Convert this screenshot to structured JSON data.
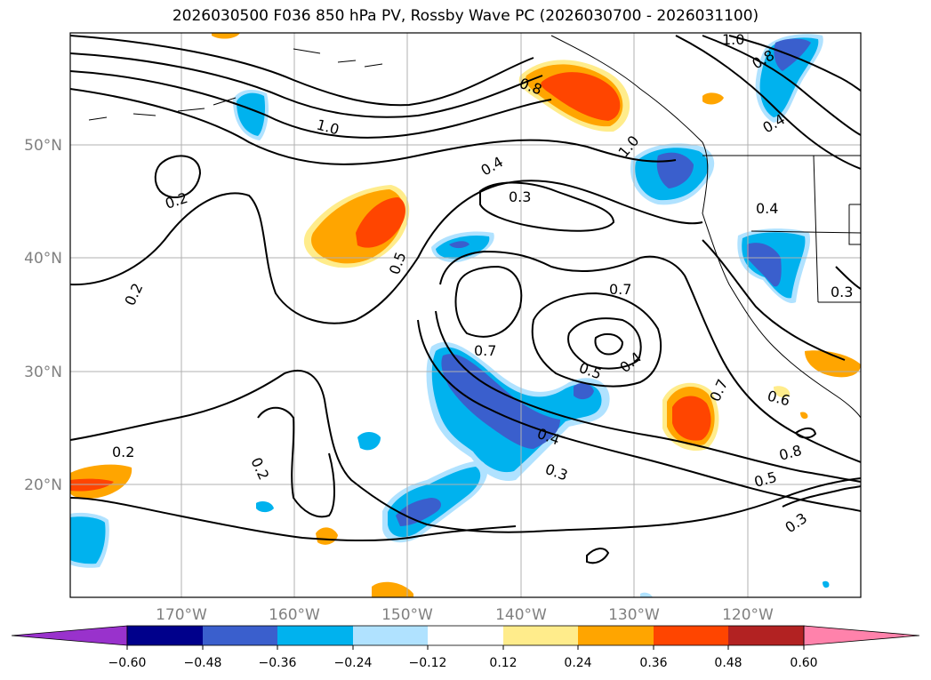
{
  "title": "2026030500 F036 850 hPa PV, Rossby Wave PC (2026030700 - 2026031100)",
  "map": {
    "lat_ticks": [
      "50°N",
      "40°N",
      "30°N",
      "20°N"
    ],
    "lon_ticks": [
      "170°W",
      "160°W",
      "150°W",
      "140°W",
      "130°W",
      "120°W"
    ],
    "contour_labels": [
      "1.0",
      "0.2",
      "0.2",
      "0.2",
      "0.2",
      "0.4",
      "0.3",
      "0.5",
      "0.7",
      "0.7",
      "0.5",
      "0.4",
      "0.7",
      "0.6",
      "0.4",
      "0.3",
      "0.8",
      "1.0",
      "0.8",
      "1.0",
      "0.4",
      "0.3",
      "0.8",
      "0.5",
      "0.3",
      "0.4"
    ]
  },
  "colorbar": {
    "tick_labels": [
      "−0.60",
      "−0.48",
      "−0.36",
      "−0.24",
      "−0.12",
      "0.12",
      "0.24",
      "0.36",
      "0.48",
      "0.60"
    ],
    "colors": [
      "#9932cc",
      "#00008b",
      "#3a5fcd",
      "#00b2ee",
      "#b0e2ff",
      "#ffffff",
      "#ffec8b",
      "#ffa500",
      "#ff4500",
      "#b22222",
      "#ff82ab"
    ]
  },
  "colors": {
    "neg_strong": "#3a5fcd",
    "neg_mid": "#00b2ee",
    "neg_weak": "#b0e2ff",
    "pos_weak": "#ffec8b",
    "pos_mid": "#ffa500",
    "pos_strong": "#ff4500"
  }
}
